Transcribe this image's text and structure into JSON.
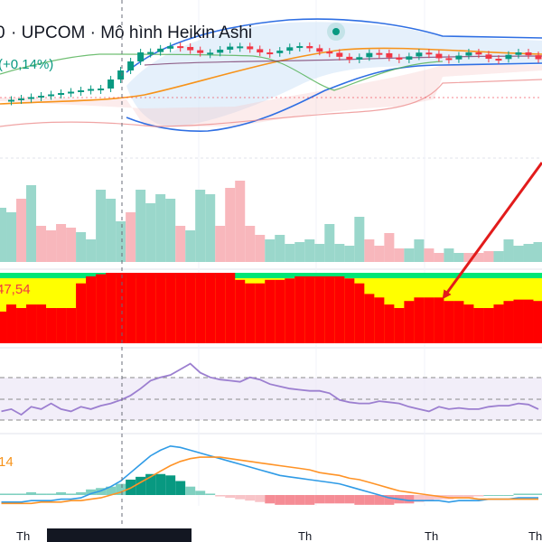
{
  "header": {
    "title": "· UPCOM · Mô hình Heikin Ashi",
    "prefix_fragment": "0",
    "change": "(+0,14%)"
  },
  "indicators": {
    "strength_value": "47,54",
    "macd_value": "14"
  },
  "colors": {
    "up": "#089981",
    "down": "#f23645",
    "vol_up": "#9ad7cb",
    "vol_down": "#f8b7bc",
    "strength_red": "#ff0000",
    "strength_yellow": "#ffff00",
    "strength_green": "#00e676",
    "rsi_line": "#9c7fd0",
    "macd_line": "#2f9be6",
    "signal_line": "#ff9326",
    "annotation_arrow": "#e21b1b",
    "ma_orange": "#f7931a",
    "bb_blue": "#2f6fe3"
  },
  "chart_data": {
    "type": "candlestick",
    "style": "heikin-ashi",
    "panes": [
      "price",
      "volume",
      "strength",
      "rsi",
      "macd"
    ],
    "x_axis_labels_visible": [
      "Th",
      "Th",
      "Th",
      "Th"
    ],
    "volume": [
      60,
      55,
      70,
      85,
      40,
      35,
      42,
      38,
      33,
      25,
      80,
      70,
      45,
      55,
      80,
      65,
      75,
      70,
      40,
      35,
      80,
      75,
      40,
      82,
      90,
      40,
      30,
      25,
      30,
      20,
      22,
      25,
      20,
      42,
      20,
      18,
      50,
      25,
      18,
      32,
      15,
      15,
      25,
      15,
      10,
      15,
      10,
      10,
      10,
      12,
      12,
      25,
      18,
      20,
      22
    ],
    "volume_direction": [
      "u",
      "u",
      "d",
      "u",
      "d",
      "d",
      "d",
      "d",
      "u",
      "u",
      "u",
      "u",
      "u",
      "d",
      "u",
      "u",
      "u",
      "u",
      "d",
      "u",
      "u",
      "u",
      "d",
      "d",
      "d",
      "d",
      "d",
      "u",
      "u",
      "u",
      "u",
      "u",
      "u",
      "u",
      "u",
      "u",
      "u",
      "d",
      "d",
      "d",
      "d",
      "u",
      "u",
      "d",
      "d",
      "u",
      "u",
      "d",
      "d",
      "d",
      "u",
      "u",
      "u",
      "u",
      "u"
    ],
    "strength_red_pct": [
      45,
      55,
      50,
      55,
      55,
      50,
      50,
      50,
      85,
      95,
      98,
      100,
      100,
      100,
      100,
      100,
      100,
      100,
      100,
      100,
      100,
      100,
      100,
      100,
      90,
      85,
      85,
      90,
      90,
      92,
      95,
      95,
      95,
      95,
      95,
      92,
      85,
      70,
      65,
      55,
      50,
      60,
      65,
      65,
      65,
      60,
      60,
      55,
      50,
      50,
      55,
      60,
      62,
      62,
      60
    ],
    "rsi": [
      48,
      50,
      45,
      52,
      50,
      55,
      50,
      48,
      52,
      50,
      53,
      55,
      58,
      62,
      68,
      75,
      78,
      80,
      85,
      90,
      82,
      78,
      76,
      75,
      74,
      78,
      76,
      72,
      70,
      68,
      67,
      66,
      66,
      64,
      58,
      56,
      55,
      55,
      57,
      56,
      55,
      52,
      50,
      48,
      52,
      50,
      51,
      50,
      50,
      52,
      53,
      53,
      55,
      54,
      50
    ],
    "macd": [
      -5,
      -5,
      -5,
      -4,
      -4,
      -4,
      -3,
      -3,
      -2,
      1,
      3,
      6,
      10,
      16,
      22,
      28,
      32,
      35,
      34,
      32,
      30,
      28,
      26,
      24,
      22,
      20,
      18,
      16,
      14,
      13,
      12,
      11,
      10,
      9,
      8,
      6,
      4,
      2,
      0,
      -2,
      -3,
      -4,
      -4,
      -4,
      -4,
      -5,
      -4,
      -4,
      -4,
      -3,
      -3,
      -3,
      -2,
      -2,
      -2
    ],
    "signal": [
      -6,
      -6,
      -6,
      -6,
      -5,
      -5,
      -5,
      -4,
      -4,
      -3,
      -2,
      0,
      2,
      5,
      9,
      13,
      17,
      21,
      24,
      26,
      27,
      27,
      27,
      26,
      25,
      24,
      23,
      22,
      21,
      20,
      19,
      18,
      16,
      15,
      14,
      12,
      11,
      9,
      7,
      5,
      3,
      2,
      1,
      0,
      -1,
      -2,
      -2,
      -2,
      -3,
      -3,
      -3,
      -3,
      -3,
      -3,
      -3
    ],
    "histogram": [
      1,
      1,
      1,
      2,
      1,
      1,
      2,
      1,
      2,
      4,
      5,
      6,
      8,
      11,
      13,
      15,
      15,
      14,
      10,
      6,
      3,
      1,
      -1,
      -2,
      -3,
      -4,
      -5,
      -6,
      -7,
      -7,
      -7,
      -7,
      -6,
      -6,
      -6,
      -6,
      -7,
      -7,
      -7,
      -7,
      -6,
      -6,
      -5,
      -4,
      -3,
      -3,
      -2,
      -2,
      -1,
      0,
      0,
      0,
      1,
      1,
      1
    ]
  }
}
